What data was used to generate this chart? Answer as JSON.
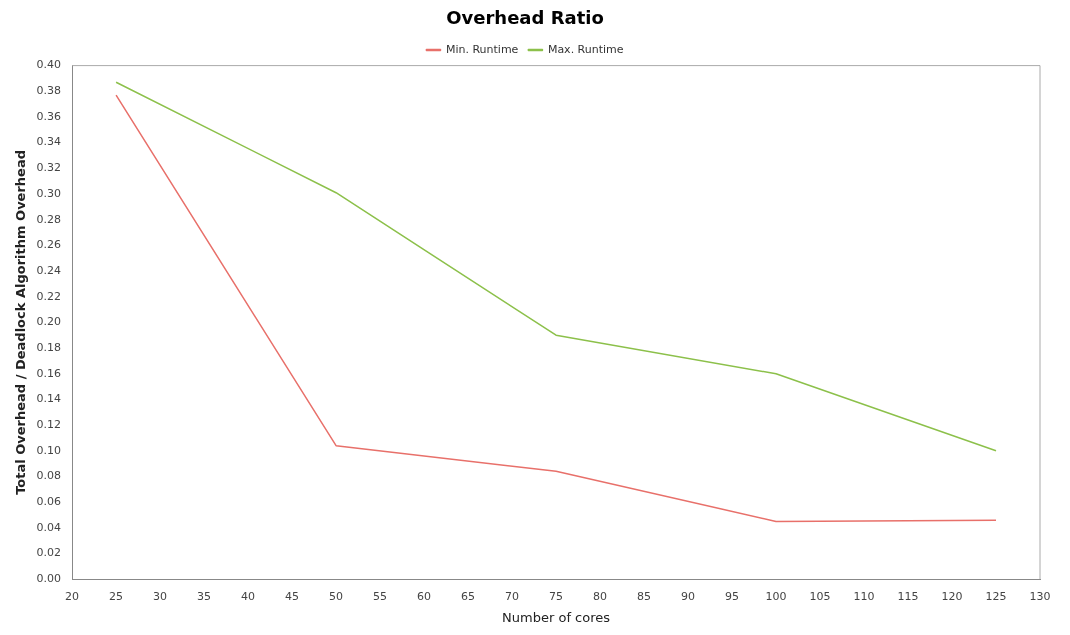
{
  "chart_data": {
    "type": "line",
    "title": "Overhead Ratio",
    "xlabel": "Number of cores",
    "ylabel": "Total Overhead / Deadlock Algorithm Overhead",
    "x": [
      25,
      50,
      75,
      100,
      125
    ],
    "series": [
      {
        "name": "Min. Runtime",
        "color": "#e8706a",
        "values": [
          0.377,
          0.104,
          0.084,
          0.045,
          0.046
        ]
      },
      {
        "name": "Max. Runtime",
        "color": "#8cc04a",
        "values": [
          0.387,
          0.301,
          0.19,
          0.16,
          0.1
        ]
      }
    ],
    "xlim": [
      20,
      130
    ],
    "xticks": [
      20,
      25,
      30,
      35,
      40,
      45,
      50,
      55,
      60,
      65,
      70,
      75,
      80,
      85,
      90,
      95,
      100,
      105,
      110,
      115,
      120,
      125,
      130
    ],
    "ylim": [
      0,
      0.4
    ],
    "yticks": [
      {
        "value": 0,
        "label": "0.00"
      },
      {
        "value": 0.02,
        "label": "0.02"
      },
      {
        "value": 0.04,
        "label": "0.04"
      },
      {
        "value": 0.06,
        "label": "0.06"
      },
      {
        "value": 0.08,
        "label": "0.08"
      },
      {
        "value": 0.1,
        "label": "0.10"
      },
      {
        "value": 0.12,
        "label": "0.12"
      },
      {
        "value": 0.14,
        "label": "0.14"
      },
      {
        "value": 0.16,
        "label": "0.16"
      },
      {
        "value": 0.18,
        "label": "0.18"
      },
      {
        "value": 0.2,
        "label": "0.20"
      },
      {
        "value": 0.22,
        "label": "0.22"
      },
      {
        "value": 0.24,
        "label": "0.24"
      },
      {
        "value": 0.26,
        "label": "0.26"
      },
      {
        "value": 0.28,
        "label": "0.28"
      },
      {
        "value": 0.3,
        "label": "0.30"
      },
      {
        "value": 0.32,
        "label": "0.32"
      },
      {
        "value": 0.34,
        "label": "0.34"
      },
      {
        "value": 0.36,
        "label": "0.36"
      },
      {
        "value": 0.38,
        "label": "0.38"
      },
      {
        "value": 0.4,
        "label": "0.40"
      }
    ],
    "grid": false,
    "legend": "top",
    "marker": "none",
    "line_style": "solid"
  }
}
